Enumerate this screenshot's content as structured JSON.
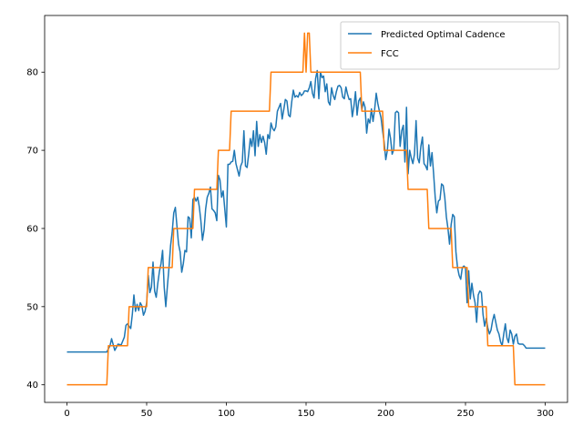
{
  "chart_data": {
    "type": "line",
    "title": "",
    "xlabel": "",
    "ylabel": "",
    "xlim": [
      -14,
      314
    ],
    "ylim": [
      37.75,
      87.25
    ],
    "x_ticks": [
      0,
      50,
      100,
      150,
      200,
      250,
      300
    ],
    "y_ticks": [
      40,
      50,
      60,
      70,
      80
    ],
    "grid": false,
    "legend_position": "top-right",
    "series": [
      {
        "name": "Predicted Optimal Cadence",
        "color": "#1f77b4",
        "points": [
          [
            0,
            44.2
          ],
          [
            25,
            44.2
          ],
          [
            27,
            45.0
          ],
          [
            28,
            45.9
          ],
          [
            30,
            44.4
          ],
          [
            32,
            45.2
          ],
          [
            34,
            45.1
          ],
          [
            36,
            46.1
          ],
          [
            37,
            47.6
          ],
          [
            38,
            47.8
          ],
          [
            40,
            47.2
          ],
          [
            41,
            49.0
          ],
          [
            42,
            51.5
          ],
          [
            43,
            49.4
          ],
          [
            44,
            50.3
          ],
          [
            45,
            49.5
          ],
          [
            46,
            50.5
          ],
          [
            47,
            50.1
          ],
          [
            48,
            48.9
          ],
          [
            49,
            49.4
          ],
          [
            50,
            50.5
          ],
          [
            51,
            54.0
          ],
          [
            52,
            51.8
          ],
          [
            53,
            52.5
          ],
          [
            54,
            55.7
          ],
          [
            55,
            52.0
          ],
          [
            56,
            51.2
          ],
          [
            57,
            53.0
          ],
          [
            58,
            54.5
          ],
          [
            59,
            55.5
          ],
          [
            60,
            57.2
          ],
          [
            61,
            52.5
          ],
          [
            62,
            50.0
          ],
          [
            63,
            52.6
          ],
          [
            64,
            55.0
          ],
          [
            65,
            57.8
          ],
          [
            66,
            59.5
          ],
          [
            67,
            62.0
          ],
          [
            68,
            62.7
          ],
          [
            69,
            60.3
          ],
          [
            70,
            58.0
          ],
          [
            71,
            57.0
          ],
          [
            72,
            54.4
          ],
          [
            73,
            55.5
          ],
          [
            74,
            57.2
          ],
          [
            75,
            57.0
          ],
          [
            76,
            61.5
          ],
          [
            77,
            61.3
          ],
          [
            78,
            58.8
          ],
          [
            79,
            63.7
          ],
          [
            80,
            64.0
          ],
          [
            81,
            63.5
          ],
          [
            82,
            64.0
          ],
          [
            83,
            62.8
          ],
          [
            84,
            61.0
          ],
          [
            85,
            58.5
          ],
          [
            86,
            59.8
          ],
          [
            87,
            62.5
          ],
          [
            88,
            64.0
          ],
          [
            89,
            64.5
          ],
          [
            90,
            65.3
          ],
          [
            91,
            62.5
          ],
          [
            92,
            62.3
          ],
          [
            93,
            62.0
          ],
          [
            94,
            61.0
          ],
          [
            95,
            66.8
          ],
          [
            96,
            66.2
          ],
          [
            97,
            64.0
          ],
          [
            98,
            64.8
          ],
          [
            99,
            62.5
          ],
          [
            100,
            60.2
          ],
          [
            101,
            68.2
          ],
          [
            102,
            68.2
          ],
          [
            103,
            68.5
          ],
          [
            104,
            68.6
          ],
          [
            105,
            70.0
          ],
          [
            106,
            68.3
          ],
          [
            107,
            67.5
          ],
          [
            108,
            66.7
          ],
          [
            109,
            68.0
          ],
          [
            110,
            68.5
          ],
          [
            111,
            72.5
          ],
          [
            112,
            68.0
          ],
          [
            113,
            67.8
          ],
          [
            114,
            69.5
          ],
          [
            115,
            71.5
          ],
          [
            116,
            70.5
          ],
          [
            117,
            72.5
          ],
          [
            118,
            69.3
          ],
          [
            119,
            73.7
          ],
          [
            120,
            70.5
          ],
          [
            121,
            72.0
          ],
          [
            122,
            71.0
          ],
          [
            123,
            71.8
          ],
          [
            124,
            71.0
          ],
          [
            125,
            69.5
          ],
          [
            126,
            72.0
          ],
          [
            127,
            71.5
          ],
          [
            128,
            73.5
          ],
          [
            129,
            72.8
          ],
          [
            130,
            72.5
          ],
          [
            131,
            73.0
          ],
          [
            132,
            75.0
          ],
          [
            133,
            75.5
          ],
          [
            134,
            76.0
          ],
          [
            135,
            74.0
          ],
          [
            136,
            75.2
          ],
          [
            137,
            76.5
          ],
          [
            138,
            76.3
          ],
          [
            139,
            74.5
          ],
          [
            140,
            74.3
          ],
          [
            141,
            76.2
          ],
          [
            142,
            77.7
          ],
          [
            143,
            76.8
          ],
          [
            144,
            77.0
          ],
          [
            145,
            76.8
          ],
          [
            146,
            77.4
          ],
          [
            147,
            77.0
          ],
          [
            148,
            77.2
          ],
          [
            149,
            77.6
          ],
          [
            150,
            77.6
          ],
          [
            151,
            77.5
          ],
          [
            152,
            78.0
          ],
          [
            153,
            78.8
          ],
          [
            154,
            77.3
          ],
          [
            155,
            76.7
          ],
          [
            156,
            79.2
          ],
          [
            157,
            80.2
          ],
          [
            158,
            76.6
          ],
          [
            159,
            80.0
          ],
          [
            160,
            79.3
          ],
          [
            161,
            79.5
          ],
          [
            162,
            77.5
          ],
          [
            163,
            78.5
          ],
          [
            164,
            76.2
          ],
          [
            165,
            75.8
          ],
          [
            166,
            78.0
          ],
          [
            167,
            77.0
          ],
          [
            168,
            76.5
          ],
          [
            169,
            77.5
          ],
          [
            170,
            78.2
          ],
          [
            171,
            78.3
          ],
          [
            172,
            78.0
          ],
          [
            173,
            76.8
          ],
          [
            174,
            76.6
          ],
          [
            175,
            78.1
          ],
          [
            176,
            77.2
          ],
          [
            177,
            76.5
          ],
          [
            178,
            76.6
          ],
          [
            179,
            74.3
          ],
          [
            180,
            75.6
          ],
          [
            181,
            77.5
          ],
          [
            182,
            74.5
          ],
          [
            183,
            76.3
          ],
          [
            184,
            76.7
          ],
          [
            185,
            75.2
          ],
          [
            186,
            76.2
          ],
          [
            187,
            75.5
          ],
          [
            188,
            72.2
          ],
          [
            189,
            74.0
          ],
          [
            190,
            73.5
          ],
          [
            191,
            75.3
          ],
          [
            192,
            73.7
          ],
          [
            193,
            75.2
          ],
          [
            194,
            77.3
          ],
          [
            195,
            76.0
          ],
          [
            196,
            75.0
          ],
          [
            197,
            74.2
          ],
          [
            198,
            72.5
          ],
          [
            199,
            71.0
          ],
          [
            200,
            68.8
          ],
          [
            201,
            70.0
          ],
          [
            202,
            72.7
          ],
          [
            203,
            71.5
          ],
          [
            204,
            69.5
          ],
          [
            205,
            70.1
          ],
          [
            206,
            74.8
          ],
          [
            207,
            75.0
          ],
          [
            208,
            74.8
          ],
          [
            209,
            70.5
          ],
          [
            210,
            72.5
          ],
          [
            211,
            73.2
          ],
          [
            212,
            68.5
          ],
          [
            213,
            75.5
          ],
          [
            214,
            67.0
          ],
          [
            215,
            70.0
          ],
          [
            216,
            69.0
          ],
          [
            217,
            68.3
          ],
          [
            218,
            69.5
          ],
          [
            219,
            73.8
          ],
          [
            220,
            69.0
          ],
          [
            221,
            68.4
          ],
          [
            222,
            70.5
          ],
          [
            223,
            71.7
          ],
          [
            224,
            68.3
          ],
          [
            225,
            68.0
          ],
          [
            226,
            67.5
          ],
          [
            227,
            70.7
          ],
          [
            228,
            68.0
          ],
          [
            229,
            69.7
          ],
          [
            230,
            67.0
          ],
          [
            231,
            64.0
          ],
          [
            232,
            62.0
          ],
          [
            233,
            63.5
          ],
          [
            234,
            63.7
          ],
          [
            235,
            65.7
          ],
          [
            236,
            65.5
          ],
          [
            237,
            64.0
          ],
          [
            238,
            61.5
          ],
          [
            239,
            60.0
          ],
          [
            240,
            58.0
          ],
          [
            241,
            60.5
          ],
          [
            242,
            61.8
          ],
          [
            243,
            61.5
          ],
          [
            244,
            57.0
          ],
          [
            245,
            55.0
          ],
          [
            246,
            54.0
          ],
          [
            247,
            53.5
          ],
          [
            248,
            55.0
          ],
          [
            249,
            55.2
          ],
          [
            250,
            55.0
          ],
          [
            251,
            50.5
          ],
          [
            252,
            54.6
          ],
          [
            253,
            51.0
          ],
          [
            254,
            53.0
          ],
          [
            255,
            51.5
          ],
          [
            256,
            50.5
          ],
          [
            257,
            48.0
          ],
          [
            258,
            51.5
          ],
          [
            259,
            52.0
          ],
          [
            260,
            51.8
          ],
          [
            261,
            49.0
          ],
          [
            262,
            47.5
          ],
          [
            263,
            48.5
          ],
          [
            264,
            47.3
          ],
          [
            265,
            46.5
          ],
          [
            266,
            47.0
          ],
          [
            267,
            48.2
          ],
          [
            268,
            49.0
          ],
          [
            269,
            48.0
          ],
          [
            270,
            47.0
          ],
          [
            271,
            46.5
          ],
          [
            272,
            45.5
          ],
          [
            273,
            45.0
          ],
          [
            274,
            46.5
          ],
          [
            275,
            47.8
          ],
          [
            276,
            46.0
          ],
          [
            277,
            45.4
          ],
          [
            278,
            47.0
          ],
          [
            279,
            46.5
          ],
          [
            280,
            45.2
          ],
          [
            281,
            46.2
          ],
          [
            282,
            46.5
          ],
          [
            283,
            45.3
          ],
          [
            284,
            45.2
          ],
          [
            286,
            45.2
          ],
          [
            287,
            45.0
          ],
          [
            288,
            44.7
          ],
          [
            300,
            44.7
          ]
        ]
      },
      {
        "name": "FCC",
        "color": "#ff7f0e",
        "points": [
          [
            0,
            40
          ],
          [
            25,
            40
          ],
          [
            26,
            45
          ],
          [
            38,
            45
          ],
          [
            39,
            50
          ],
          [
            50,
            50
          ],
          [
            51,
            55
          ],
          [
            66,
            55
          ],
          [
            67,
            60
          ],
          [
            79,
            60
          ],
          [
            80,
            65
          ],
          [
            94,
            65
          ],
          [
            95,
            70
          ],
          [
            102,
            70
          ],
          [
            103,
            75
          ],
          [
            127,
            75
          ],
          [
            128,
            80
          ],
          [
            148,
            80
          ],
          [
            149,
            85
          ],
          [
            150,
            80
          ],
          [
            151,
            85
          ],
          [
            152,
            85
          ],
          [
            153,
            80
          ],
          [
            184,
            80
          ],
          [
            185,
            75
          ],
          [
            198,
            75
          ],
          [
            199,
            70
          ],
          [
            213,
            70
          ],
          [
            214,
            65
          ],
          [
            226,
            65
          ],
          [
            227,
            60
          ],
          [
            241,
            60
          ],
          [
            242,
            55
          ],
          [
            251,
            55
          ],
          [
            252,
            50
          ],
          [
            263,
            50
          ],
          [
            264,
            45
          ],
          [
            280,
            45
          ],
          [
            281,
            40
          ],
          [
            300,
            40
          ]
        ]
      }
    ]
  }
}
